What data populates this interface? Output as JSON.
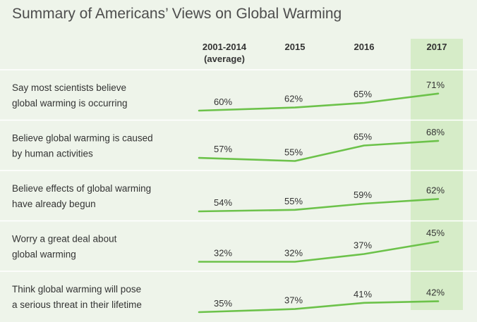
{
  "title": "Summary of Americans’ Views on Global Warming",
  "chart_data": {
    "type": "line",
    "title": "Summary of Americans’ Views on Global Warming",
    "columns": [
      {
        "label": [
          "2001-2014",
          "(average)"
        ]
      },
      {
        "label": [
          "2015"
        ]
      },
      {
        "label": [
          "2016"
        ]
      },
      {
        "label": [
          "2017"
        ],
        "highlighted": true
      }
    ],
    "value_suffix": "%",
    "rows": [
      {
        "label": [
          "Say most scientists believe",
          "global warming is occurring"
        ],
        "values": [
          60,
          62,
          65,
          71
        ]
      },
      {
        "label": [
          "Believe global warming is caused",
          "by human activities"
        ],
        "values": [
          57,
          55,
          65,
          68
        ]
      },
      {
        "label": [
          "Believe effects of global warming",
          "have already begun"
        ],
        "values": [
          54,
          55,
          59,
          62
        ]
      },
      {
        "label": [
          "Worry a great deal about",
          "global warming"
        ],
        "values": [
          32,
          32,
          37,
          45
        ]
      },
      {
        "label": [
          "Think global warming will pose",
          "a serious threat in their lifetime"
        ],
        "values": [
          35,
          37,
          41,
          42
        ]
      }
    ],
    "colors": {
      "background": "#eef4ea",
      "line": "#6cc24a",
      "highlight_column": "#d6ecc8",
      "divider": "#ffffff"
    }
  }
}
